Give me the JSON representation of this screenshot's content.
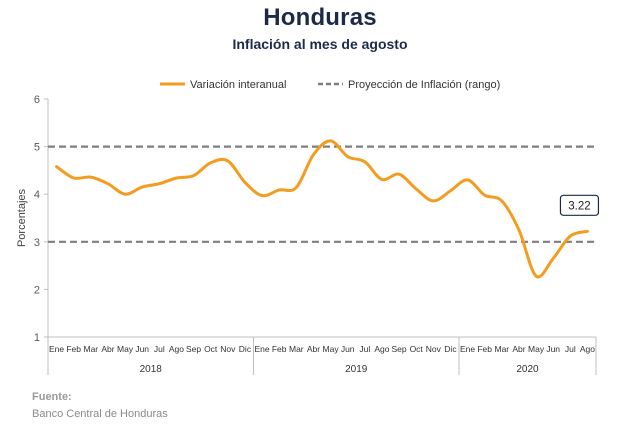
{
  "title": "Honduras",
  "subtitle": "Inflación al mes de agosto",
  "source_label": "Fuente:",
  "source_text": "Banco Central de Honduras",
  "colors": {
    "series": "#f39c1f",
    "projection": "#7f7f7f",
    "title": "#1c2a4a",
    "axis": "#595959"
  },
  "chart_data": {
    "type": "line",
    "ylabel": "Porcentajes",
    "ylim": [
      1,
      6
    ],
    "yticks": [
      1,
      2,
      3,
      4,
      5,
      6
    ],
    "grid": false,
    "legend_position": "top",
    "x": [
      "Ene",
      "Feb",
      "Mar",
      "Abr",
      "May",
      "Jun",
      "Jul",
      "Ago",
      "Sep",
      "Oct",
      "Nov",
      "Dic",
      "Ene",
      "Feb",
      "Mar",
      "Abr",
      "May",
      "Jun",
      "Jul",
      "Ago",
      "Sep",
      "Oct",
      "Nov",
      "Dic",
      "Ene",
      "Feb",
      "Mar",
      "Abr",
      "May",
      "Jun",
      "Jul",
      "Ago"
    ],
    "years": [
      {
        "label": "2018",
        "months": 12
      },
      {
        "label": "2019",
        "months": 12
      },
      {
        "label": "2020",
        "months": 8
      }
    ],
    "series": [
      {
        "name": "Variación interanual",
        "values": [
          4.58,
          4.34,
          4.36,
          4.22,
          4.0,
          4.15,
          4.22,
          4.34,
          4.39,
          4.66,
          4.7,
          4.25,
          3.97,
          4.09,
          4.14,
          4.83,
          5.12,
          4.79,
          4.68,
          4.31,
          4.42,
          4.11,
          3.86,
          4.07,
          4.3,
          3.98,
          3.86,
          3.25,
          2.28,
          2.65,
          3.12,
          3.22
        ]
      }
    ],
    "reference_lines": {
      "name": "Proyección de Inflación (rango)",
      "values": [
        3,
        5
      ]
    },
    "annotation": {
      "label": "3.22",
      "index": 31
    }
  }
}
